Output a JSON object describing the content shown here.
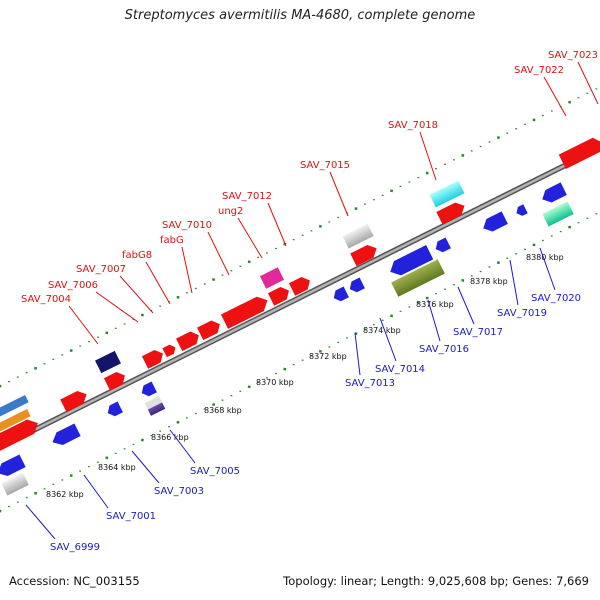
{
  "title": "Streptomyces avermitilis MA-4680, complete genome",
  "footer": {
    "accession": "Accession: NC_003155",
    "summary": "Topology: linear; Length: 9,025,608 bp; Genes: 7,669"
  },
  "colors": {
    "forward_label": "#e01010",
    "reverse_label": "#1a1acc",
    "backbone": "#8a8a8a",
    "dots": "#2a8a2a"
  },
  "ticks": [
    "8362 kbp",
    "8364 kbp",
    "8366 kbp",
    "8368 kbp",
    "8370 kbp",
    "8372 kbp",
    "8374 kbp",
    "8376 kbp",
    "8378 kbp",
    "8380 kbp"
  ],
  "top_genes": [
    "SAV_7004",
    "SAV_7006",
    "SAV_7007",
    "fabG8",
    "fabG",
    "SAV_7010",
    "ung2",
    "SAV_7012",
    "SAV_7015",
    "SAV_7018",
    "SAV_7022",
    "SAV_7023"
  ],
  "bottom_genes": [
    "SAV_6999",
    "SAV_7001",
    "SAV_7003",
    "SAV_7005",
    "SAV_7013",
    "SAV_7014",
    "SAV_7016",
    "SAV_7017",
    "SAV_7019",
    "SAV_7020"
  ]
}
